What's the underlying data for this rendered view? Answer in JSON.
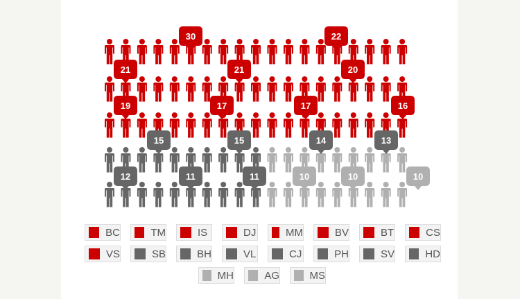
{
  "colors": {
    "red": "#cc0000",
    "dark": "#666666",
    "light": "#b0b0b0",
    "bg": "#f5f5f1",
    "panel": "#ffffff"
  },
  "legend": [
    {
      "label": "BC",
      "group": "red"
    },
    {
      "label": "TM",
      "group": "red"
    },
    {
      "label": "IS",
      "group": "red"
    },
    {
      "label": "DJ",
      "group": "red"
    },
    {
      "label": "MM",
      "group": "red"
    },
    {
      "label": "BV",
      "group": "red"
    },
    {
      "label": "BT",
      "group": "red"
    },
    {
      "label": "CS",
      "group": "red"
    },
    {
      "label": "VS",
      "group": "red"
    },
    {
      "label": "SB",
      "group": "dark"
    },
    {
      "label": "BH",
      "group": "dark"
    },
    {
      "label": "VL",
      "group": "dark"
    },
    {
      "label": "CJ",
      "group": "dark"
    },
    {
      "label": "PH",
      "group": "dark"
    },
    {
      "label": "SV",
      "group": "dark"
    },
    {
      "label": "HD",
      "group": "dark"
    },
    {
      "label": "MH",
      "group": "light"
    },
    {
      "label": "AG",
      "group": "light"
    },
    {
      "label": "MS",
      "group": "light"
    }
  ],
  "chart_data": {
    "type": "pictogram",
    "title": "",
    "series": [
      {
        "label": "BC",
        "group": "red",
        "value": 21
      },
      {
        "label": "TM",
        "group": "red",
        "value": 19
      },
      {
        "label": "IS",
        "group": "red",
        "value": 30
      },
      {
        "label": "DJ",
        "group": "red",
        "value": 17
      },
      {
        "label": "MM",
        "group": "red",
        "value": 21
      },
      {
        "label": "BV",
        "group": "red",
        "value": 17
      },
      {
        "label": "BT",
        "group": "red",
        "value": 22
      },
      {
        "label": "CS",
        "group": "red",
        "value": 20
      },
      {
        "label": "VS",
        "group": "red",
        "value": 16
      },
      {
        "label": "SB",
        "group": "dark",
        "value": 12
      },
      {
        "label": "BH",
        "group": "dark",
        "value": 15
      },
      {
        "label": "VL",
        "group": "dark",
        "value": 11
      },
      {
        "label": "CJ",
        "group": "dark",
        "value": 15
      },
      {
        "label": "PH",
        "group": "dark",
        "value": 11
      },
      {
        "label": "SV",
        "group": "dark",
        "value": 14
      },
      {
        "label": "HD",
        "group": "dark",
        "value": 13
      },
      {
        "label": "MH",
        "group": "light",
        "value": 10
      },
      {
        "label": "AG",
        "group": "light",
        "value": 10
      },
      {
        "label": "MS",
        "group": "light",
        "value": 10
      }
    ]
  }
}
